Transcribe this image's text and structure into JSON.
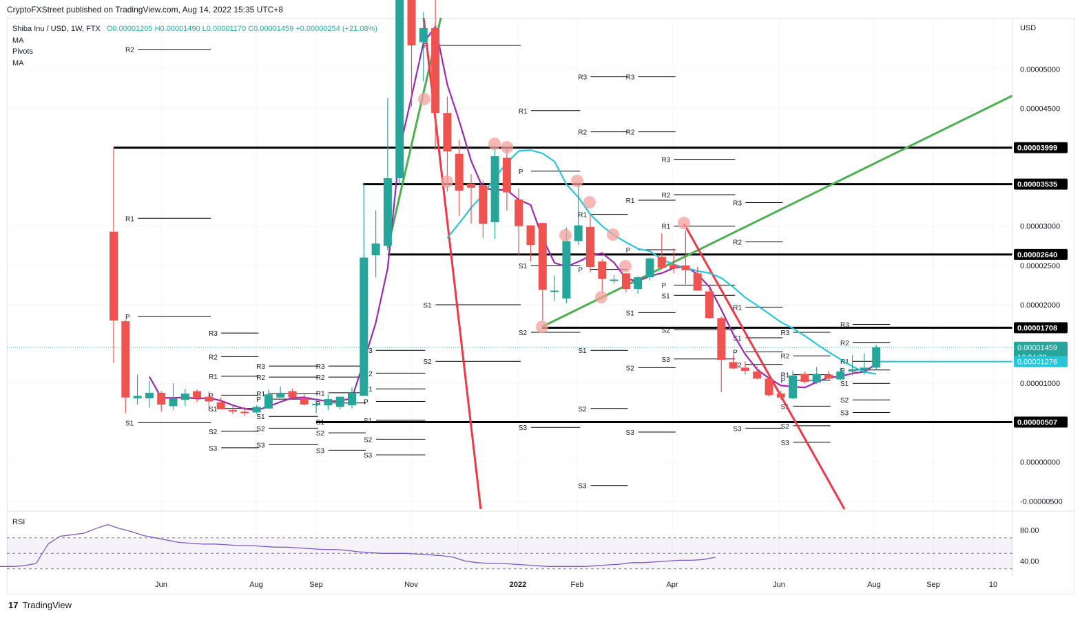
{
  "header": {
    "published": "CryptoFXStreet published on TradingView.com, Aug 14, 2022 15:35 UTC+8"
  },
  "footer": {
    "brand": "TradingView",
    "logo_glyph": "17"
  },
  "legend": {
    "symbol": "Shiba Inu / USD, 1W, FTX",
    "ohlc": "O0.00001205 H0.00001490 L0.00001170 C0.00001459 +0.00000254 (+21.08%)",
    "lines": [
      "MA",
      "Pivots",
      "MA"
    ]
  },
  "colors": {
    "up": "#26a69a",
    "down": "#ef5350",
    "ma_fast": "#9c27b0",
    "ma_slow": "#26c6da",
    "trend_green": "#4caf50",
    "trend_red": "#f23645",
    "level": "#000000",
    "marker": "#f4a09c"
  },
  "chart_data": {
    "type": "candlestick",
    "y_unit": "USD",
    "ylim": [
      -6e-06,
      5.65e-05
    ],
    "y_ticks": [
      "0.00005000",
      "0.00004500",
      "0.00003000",
      "0.00002500",
      "0.00002000",
      "0.00001000",
      "0.00000000",
      "-0.00000500"
    ],
    "x_ticks": [
      "Jun",
      "Aug",
      "Sep",
      "Nov",
      "2022",
      "Feb",
      "Apr",
      "Jun",
      "Aug",
      "Sep",
      "10"
    ],
    "candles": [
      {
        "o": 2.93e-05,
        "h": 4e-05,
        "l": 1.26e-05,
        "c": 1.8e-05
      },
      {
        "o": 1.79e-05,
        "h": 1.81e-05,
        "l": 6.2e-06,
        "c": 8.2e-06
      },
      {
        "o": 8.1e-06,
        "h": 1.11e-05,
        "l": 7.3e-06,
        "c": 8.4e-06
      },
      {
        "o": 8.1e-06,
        "h": 1.03e-05,
        "l": 6.9e-06,
        "c": 8.8e-06
      },
      {
        "o": 8.8e-06,
        "h": 9e-06,
        "l": 6.4e-06,
        "c": 7.3e-06
      },
      {
        "o": 7.1e-06,
        "h": 1e-05,
        "l": 6.6e-06,
        "c": 8.1e-06
      },
      {
        "o": 7.9e-06,
        "h": 9.3e-06,
        "l": 7.1e-06,
        "c": 8.7e-06
      },
      {
        "o": 9e-06,
        "h": 9.2e-06,
        "l": 7.6e-06,
        "c": 8.1e-06
      },
      {
        "o": 8.3e-06,
        "h": 9e-06,
        "l": 6.5e-06,
        "c": 7.7e-06
      },
      {
        "o": 7.6e-06,
        "h": 8.2e-06,
        "l": 6.7e-06,
        "c": 6.7e-06
      },
      {
        "o": 6.6e-06,
        "h": 7.3e-06,
        "l": 6.1e-06,
        "c": 6.4e-06
      },
      {
        "o": 6.4e-06,
        "h": 7.1e-06,
        "l": 5.8e-06,
        "c": 6.2e-06
      },
      {
        "o": 6.3e-06,
        "h": 7.2e-06,
        "l": 6.1e-06,
        "c": 7e-06
      },
      {
        "o": 6.8e-06,
        "h": 9.2e-06,
        "l": 6.8e-06,
        "c": 8.6e-06
      },
      {
        "o": 8.2e-06,
        "h": 9.6e-06,
        "l": 8.2e-06,
        "c": 8.8e-06
      },
      {
        "o": 9e-06,
        "h": 9.3e-06,
        "l": 8e-06,
        "c": 8.2e-06
      },
      {
        "o": 8.1e-06,
        "h": 8.6e-06,
        "l": 7.2e-06,
        "c": 7.3e-06
      },
      {
        "o": 7.3e-06,
        "h": 8e-06,
        "l": 6.2e-06,
        "c": 7.4e-06
      },
      {
        "o": 7.2e-06,
        "h": 8.6e-06,
        "l": 6.6e-06,
        "c": 8e-06
      },
      {
        "o": 7e-06,
        "h": 8.2e-06,
        "l": 6.7e-06,
        "c": 8.3e-06
      },
      {
        "o": 7.2e-06,
        "h": 9.5e-06,
        "l": 6.8e-06,
        "c": 8.8e-06
      },
      {
        "o": 8.4e-06,
        "h": 3.55e-05,
        "l": 8.4e-06,
        "c": 2.6e-05
      },
      {
        "o": 2.63e-05,
        "h": 3.2e-05,
        "l": 2.35e-05,
        "c": 2.78e-05
      },
      {
        "o": 2.75e-05,
        "h": 4.63e-05,
        "l": 2.69e-05,
        "c": 3.61e-05
      },
      {
        "o": 3.61e-05,
        "h": 7.12e-05,
        "l": 3.52e-05,
        "c": 6.9e-05
      },
      {
        "o": 6.9e-05,
        "h": 8.04e-05,
        "l": 4.52e-05,
        "c": 5.3e-05
      },
      {
        "o": 5.34e-05,
        "h": 5.72e-05,
        "l": 4.84e-05,
        "c": 5.52e-05
      },
      {
        "o": 5.52e-05,
        "h": 6.05e-05,
        "l": 3.97e-05,
        "c": 4.44e-05
      },
      {
        "o": 4.44e-05,
        "h": 4.65e-05,
        "l": 3.44e-05,
        "c": 3.95e-05
      },
      {
        "o": 3.92e-05,
        "h": 4.1e-05,
        "l": 3.13e-05,
        "c": 3.45e-05
      },
      {
        "o": 3.54e-05,
        "h": 3.66e-05,
        "l": 3.03e-05,
        "c": 3.49e-05
      },
      {
        "o": 3.52e-05,
        "h": 3.58e-05,
        "l": 2.85e-05,
        "c": 3.03e-05
      },
      {
        "o": 3.05e-05,
        "h": 4.03e-05,
        "l": 2.84e-05,
        "c": 3.89e-05
      },
      {
        "o": 3.87e-05,
        "h": 3.98e-05,
        "l": 3.2e-05,
        "c": 3.43e-05
      },
      {
        "o": 3.34e-05,
        "h": 3.48e-05,
        "l": 2.63e-05,
        "c": 3e-05
      },
      {
        "o": 3.01e-05,
        "h": 3.01e-05,
        "l": 2.55e-05,
        "c": 2.76e-05
      },
      {
        "o": 3.04e-05,
        "h": 3.04e-05,
        "l": 1.8e-05,
        "c": 2.19e-05
      },
      {
        "o": 2.18e-05,
        "h": 2.37e-05,
        "l": 2.05e-05,
        "c": 2.18e-05
      },
      {
        "o": 2.08e-05,
        "h": 2.98e-05,
        "l": 2.02e-05,
        "c": 2.81e-05
      },
      {
        "o": 2.81e-05,
        "h": 3.52e-05,
        "l": 2.76e-05,
        "c": 3.01e-05
      },
      {
        "o": 2.99e-05,
        "h": 3.14e-05,
        "l": 2.41e-05,
        "c": 2.48e-05
      },
      {
        "o": 2.55e-05,
        "h": 2.58e-05,
        "l": 2.17e-05,
        "c": 2.33e-05
      },
      {
        "o": 2.31e-05,
        "h": 2.38e-05,
        "l": 2.27e-05,
        "c": 2.32e-05
      },
      {
        "o": 2.4e-05,
        "h": 2.4e-05,
        "l": 2.16e-05,
        "c": 2.2e-05
      },
      {
        "o": 2.2e-05,
        "h": 2.36e-05,
        "l": 2.14e-05,
        "c": 2.35e-05
      },
      {
        "o": 2.35e-05,
        "h": 2.6e-05,
        "l": 2.31e-05,
        "c": 2.59e-05
      },
      {
        "o": 2.61e-05,
        "h": 2.91e-05,
        "l": 2.45e-05,
        "c": 2.47e-05
      },
      {
        "o": 2.51e-05,
        "h": 2.72e-05,
        "l": 2.4e-05,
        "c": 2.46e-05
      },
      {
        "o": 2.5e-05,
        "h": 2.95e-05,
        "l": 2.26e-05,
        "c": 2.44e-05
      },
      {
        "o": 2.4e-05,
        "h": 2.48e-05,
        "l": 2.18e-05,
        "c": 2.18e-05
      },
      {
        "o": 2.17e-05,
        "h": 2.22e-05,
        "l": 1.82e-05,
        "c": 1.83e-05
      },
      {
        "o": 1.83e-05,
        "h": 1.85e-05,
        "l": 8.9e-06,
        "c": 1.3e-05
      },
      {
        "o": 1.27e-05,
        "h": 1.36e-05,
        "l": 1.18e-05,
        "c": 1.19e-05
      },
      {
        "o": 1.2e-05,
        "h": 1.28e-05,
        "l": 1.11e-05,
        "c": 1.16e-05
      },
      {
        "o": 1.15e-05,
        "h": 1.22e-05,
        "l": 1.05e-05,
        "c": 1.06e-05
      },
      {
        "o": 1.06e-05,
        "h": 1.11e-05,
        "l": 8.3e-06,
        "c": 8.5e-06
      },
      {
        "o": 8.7e-06,
        "h": 9.1e-06,
        "l": 7.9e-06,
        "c": 8.2e-06
      },
      {
        "o": 8.1e-06,
        "h": 1.16e-05,
        "l": 8e-06,
        "c": 1.1e-05
      },
      {
        "o": 1.12e-05,
        "h": 1.15e-05,
        "l": 1e-05,
        "c": 1.02e-05
      },
      {
        "o": 1.01e-05,
        "h": 1.21e-05,
        "l": 9.9e-06,
        "c": 1.12e-05
      },
      {
        "o": 1.11e-05,
        "h": 1.16e-05,
        "l": 1.04e-05,
        "c": 1.06e-05
      },
      {
        "o": 1.05e-05,
        "h": 1.2e-05,
        "l": 1.04e-05,
        "c": 1.15e-05
      },
      {
        "o": 1.15e-05,
        "h": 1.36e-05,
        "l": 1.1e-05,
        "c": 1.18e-05
      },
      {
        "o": 1.17e-05,
        "h": 1.38e-05,
        "l": 1.11e-05,
        "c": 1.2e-05
      },
      {
        "o": 1.2e-05,
        "h": 1.49e-05,
        "l": 1.17e-05,
        "c": 1.46e-05
      }
    ],
    "horizontal_levels": [
      "0.00003999",
      "0.00003535",
      "0.00002640",
      "0.00001708",
      "0.00000507"
    ],
    "price_labels": [
      {
        "text": "0.00001459",
        "sub": "16:24:30",
        "color": "#26a69a"
      },
      {
        "text": "0.00001276",
        "color": "#26c6da"
      }
    ],
    "pivot_labels": [
      "R3",
      "R2",
      "R1",
      "P",
      "S1",
      "S2",
      "S3"
    ],
    "rsi": {
      "label": "RSI",
      "ticks": [
        "80.00",
        "40.00"
      ],
      "upper": 70,
      "lower": 30,
      "ylim": [
        20,
        100
      ],
      "values": [
        33,
        32,
        32,
        31,
        32,
        33,
        33,
        34,
        37,
        62,
        72,
        74,
        76,
        82,
        87,
        82,
        78,
        73,
        70,
        67,
        64,
        63,
        62,
        62,
        61,
        60,
        60,
        59,
        58,
        58,
        57,
        56,
        55,
        55,
        54,
        52,
        51,
        50,
        50,
        50,
        49,
        48,
        47,
        45,
        40,
        38,
        37,
        37,
        36,
        35,
        34,
        33,
        33,
        33,
        33,
        34,
        35,
        36,
        38,
        38,
        39,
        40,
        41,
        41,
        42,
        45
      ]
    }
  }
}
